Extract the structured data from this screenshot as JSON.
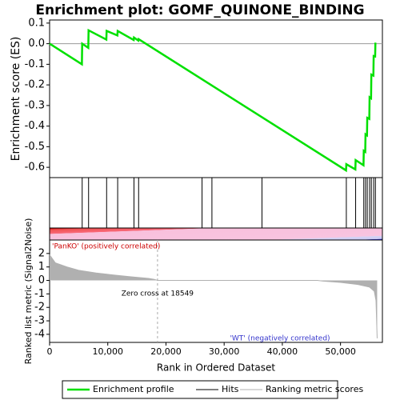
{
  "chart_data": [
    {
      "type": "line",
      "title": "Enrichment plot: GOMF_QUINONE_BINDING",
      "ylabel": "Enrichment score (ES)",
      "xlim": [
        0,
        57200
      ],
      "ylim": [
        -0.65,
        0.115
      ],
      "yticks": [
        0.1,
        {
          "value": 0,
          "label": "0.0"
        },
        -0.1,
        -0.2,
        -0.3,
        -0.4,
        -0.5,
        -0.6
      ],
      "x": [
        0,
        5550,
        5600,
        6650,
        6700,
        9750,
        9800,
        11650,
        11700,
        14450,
        14500,
        15250,
        15300,
        50950,
        51000,
        52550,
        52600,
        53950,
        54000,
        54250,
        54300,
        54550,
        54600,
        54950,
        55000,
        55250,
        55300,
        55650,
        55700,
        55950,
        56000
      ],
      "series": [
        {
          "name": "Enrichment profile",
          "color": "#00e000",
          "values": [
            0,
            -0.1,
            0.0,
            -0.02,
            0.065,
            0.02,
            0.062,
            0.04,
            0.062,
            0.018,
            0.03,
            0.015,
            0.022,
            -0.615,
            -0.585,
            -0.61,
            -0.565,
            -0.59,
            -0.52,
            -0.525,
            -0.44,
            -0.445,
            -0.36,
            -0.365,
            -0.26,
            -0.265,
            -0.15,
            -0.155,
            -0.06,
            -0.062,
            0.005
          ]
        }
      ]
    },
    {
      "type": "rug",
      "name": "Hits",
      "color": "#000000",
      "xlim": [
        0,
        57200
      ],
      "x": [
        5600,
        6700,
        9800,
        11700,
        14500,
        15300,
        26200,
        27900,
        36500,
        51000,
        52600,
        54000,
        54300,
        54600,
        55000,
        55300,
        55700,
        56000
      ]
    },
    {
      "type": "area",
      "name": "Ranking metric scores",
      "color": "#b0b0b0",
      "ylabel": "Ranked list metric (Signal2Noise)",
      "xlabel": "Rank in Ordered Dataset",
      "positive_label": "'PanKO' (positively correlated)",
      "negative_label": "'WT' (negatively correlated)",
      "zero_cross_label": "Zero cross at 18549",
      "zero_cross": 18549,
      "xlim": [
        0,
        57200
      ],
      "ylim": [
        -4.6,
        3.0
      ],
      "xticks": [
        0,
        {
          "value": 10000,
          "label": "10,000"
        },
        {
          "value": 20000,
          "label": "20,000"
        },
        {
          "value": 30000,
          "label": "30,000"
        },
        {
          "value": 40000,
          "label": "40,000"
        },
        {
          "value": 50000,
          "label": "50,000"
        }
      ],
      "yticks": [
        2,
        1,
        0,
        -1,
        -2,
        -3,
        -4
      ],
      "x": [
        0,
        1000,
        3000,
        5000,
        8000,
        11000,
        14000,
        17000,
        18000,
        18549,
        46000,
        47000,
        50000,
        53000,
        55000,
        55800,
        56100,
        56300
      ],
      "values": [
        1.9,
        1.3,
        1.0,
        0.75,
        0.55,
        0.4,
        0.27,
        0.15,
        0.08,
        0,
        0,
        -0.05,
        -0.15,
        -0.3,
        -0.5,
        -0.8,
        -1.5,
        -4.3
      ]
    }
  ]
}
